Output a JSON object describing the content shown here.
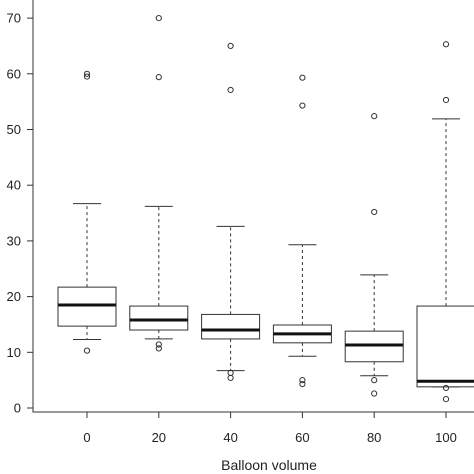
{
  "chart_data": {
    "type": "box",
    "xlabel": "Balloon volume",
    "ylabel": "",
    "ylim": [
      -2,
      73
    ],
    "yticks": [
      0,
      10,
      20,
      30,
      40,
      50,
      60,
      70
    ],
    "categories": [
      "0",
      "20",
      "40",
      "60",
      "80",
      "100"
    ],
    "boxes": [
      {
        "category": "0",
        "whisker_low": 12.3,
        "q1": 14.7,
        "median": 18.5,
        "q3": 21.7,
        "whisker_high": 36.7,
        "outliers": [
          10.3,
          59.5,
          60.0
        ]
      },
      {
        "category": "20",
        "whisker_low": 12.4,
        "q1": 14.0,
        "median": 15.8,
        "q3": 18.3,
        "whisker_high": 36.2,
        "outliers": [
          10.7,
          11.4,
          59.4,
          70.0
        ]
      },
      {
        "category": "40",
        "whisker_low": 6.7,
        "q1": 12.4,
        "median": 14.0,
        "q3": 16.8,
        "whisker_high": 32.6,
        "outliers": [
          5.4,
          6.3,
          57.1,
          65.0
        ]
      },
      {
        "category": "60",
        "whisker_low": 9.3,
        "q1": 11.7,
        "median": 13.3,
        "q3": 14.9,
        "whisker_high": 29.3,
        "outliers": [
          4.3,
          5.0,
          54.3,
          59.3
        ]
      },
      {
        "category": "80",
        "whisker_low": 5.8,
        "q1": 8.3,
        "median": 11.3,
        "q3": 13.8,
        "whisker_high": 23.9,
        "outliers": [
          2.6,
          5.0,
          35.2,
          52.4
        ]
      },
      {
        "category": "100",
        "whisker_low": 3.8,
        "q1": 3.8,
        "median": 4.8,
        "q3": 18.3,
        "whisker_high": 51.9,
        "outliers": [
          1.6,
          3.6,
          55.3,
          65.3
        ]
      }
    ],
    "grid": false,
    "legend": "none"
  }
}
